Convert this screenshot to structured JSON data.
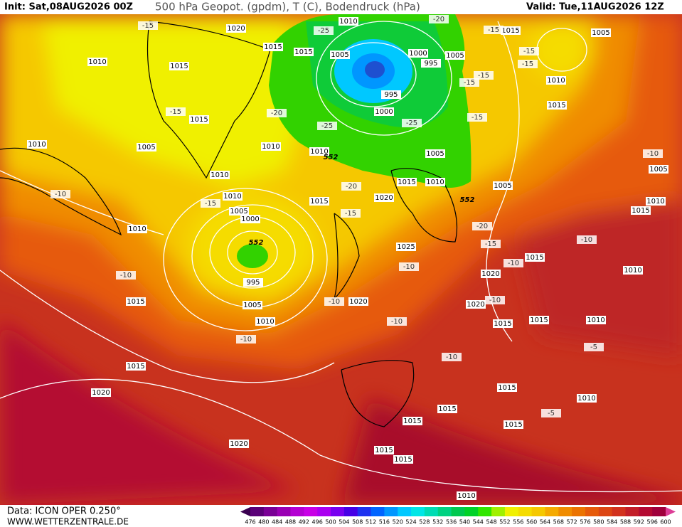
{
  "header": {
    "init": "Init: Sat,08AUG2026 00Z",
    "title": "500 hPa Geopot. (gpdm), T (C), Bodendruck (hPa)",
    "valid": "Valid: Tue,11AUG2026 12Z"
  },
  "footer": {
    "source": "Data: ICON OPER 0.250°",
    "site": "WWW.WETTERZENTRALE.DE"
  },
  "colorbar": {
    "labels": [
      476,
      480,
      484,
      488,
      492,
      496,
      500,
      504,
      508,
      512,
      516,
      520,
      524,
      528,
      532,
      536,
      540,
      544,
      548,
      552,
      556,
      560,
      564,
      568,
      572,
      576,
      580,
      584,
      588,
      592,
      596,
      600
    ],
    "colors": [
      "#3a0050",
      "#5a0078",
      "#7a0096",
      "#9a00b4",
      "#b400d2",
      "#c800e6",
      "#aa00f0",
      "#7800f0",
      "#4600e6",
      "#1e32f0",
      "#0064ff",
      "#0096ff",
      "#00c8ff",
      "#00e6e6",
      "#00dcb4",
      "#00d282",
      "#00c850",
      "#00d228",
      "#32e600",
      "#a0f000",
      "#f0f000",
      "#f5dc00",
      "#f5c800",
      "#f5aa00",
      "#f08c00",
      "#eb7300",
      "#e65a0a",
      "#dc4614",
      "#d2321e",
      "#c31e28",
      "#b40a32",
      "#a0003c",
      "#dc3c96"
    ]
  },
  "map": {
    "pressure_labels": [
      1020,
      1015,
      1010,
      1015,
      1015,
      1010,
      1005,
      1010,
      1010,
      1010,
      1010,
      1005,
      1015,
      1000,
      995,
      995,
      1000,
      1005,
      1015,
      1005,
      1010,
      1015,
      1005,
      1015,
      1010,
      1005,
      1020,
      1015,
      1010,
      1005,
      1000,
      995,
      1005,
      1010,
      1010,
      1015,
      1015,
      1020,
      1020,
      1025,
      1020,
      1020,
      1020,
      1015,
      1015,
      1015,
      1010,
      1010,
      1015,
      1005,
      1010,
      1015,
      1015,
      1015,
      1015,
      1015,
      1015,
      1010,
      1010
    ],
    "temperature_labels": [
      -15,
      -25,
      -20,
      -15,
      -15,
      -15,
      -15,
      -15,
      -15,
      -15,
      -20,
      -25,
      -25,
      -20,
      -15,
      -15,
      -20,
      -15,
      -10,
      -10,
      -10,
      -10,
      -10,
      -10,
      -10,
      -10,
      -10,
      -10,
      -10,
      -5,
      -5
    ],
    "geopotential_labels": [
      552,
      552,
      552
    ]
  }
}
